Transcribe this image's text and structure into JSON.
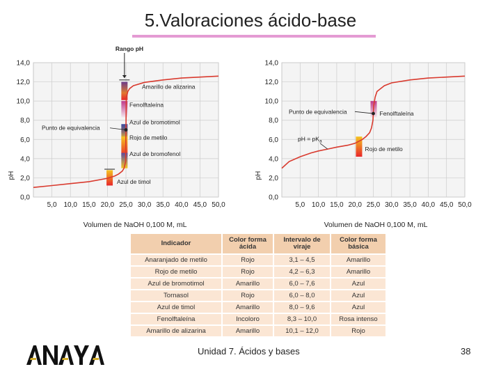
{
  "slide": {
    "title": "5.Valoraciones ácido-base",
    "footer": "Unidad 7. Ácidos y bases",
    "page_number": "38",
    "logo_text": "ANAYA"
  },
  "colors": {
    "curve": "#d93a2e",
    "title_underline": "#e49bd3",
    "table_header": "#f2cfae",
    "table_cell": "#fbe6d4",
    "gradient_top": "#7a3a8a",
    "gradient_bottom": "#e8262a",
    "mid_yellow": "#f5c421"
  },
  "chart_data": [
    {
      "type": "line",
      "title": "",
      "xlabel": "Volumen de NaOH 0,100 M, mL",
      "ylabel": "pH",
      "xlim": [
        0,
        50
      ],
      "ylim": [
        0,
        14
      ],
      "xticks": [
        "5,0",
        "10,0",
        "15,0",
        "20,0",
        "25,0",
        "30,0",
        "35,0",
        "40,0",
        "45,0",
        "50,0"
      ],
      "yticks": [
        "0,0",
        "2,0",
        "4,0",
        "6,0",
        "8,0",
        "10,0",
        "12,0",
        "14,0"
      ],
      "grid": true,
      "series": [
        {
          "x": [
            0,
            5,
            10,
            15,
            20,
            22,
            23,
            24,
            24.5,
            24.9,
            25,
            25.1,
            25.5,
            26,
            27,
            30,
            35,
            40,
            45,
            50
          ],
          "y": [
            1,
            1.2,
            1.4,
            1.6,
            1.95,
            2.2,
            2.4,
            2.7,
            3,
            3.7,
            7,
            10.3,
            11,
            11.3,
            11.6,
            11.95,
            12.2,
            12.4,
            12.5,
            12.6
          ]
        }
      ],
      "range_label": "Rango pH",
      "equivalence_label": "Punto de equivalencia",
      "indicators": [
        "Amarillo de alizarina",
        "Fenolftaleína",
        "Azul de bromotimol",
        "Rojo de metilo",
        "Azul de bromofenol",
        "Azul de timol"
      ]
    },
    {
      "type": "line",
      "title": "",
      "xlabel": "Volumen de NaOH 0,100 M, mL",
      "ylabel": "pH",
      "xlim": [
        0,
        50
      ],
      "ylim": [
        0,
        14
      ],
      "xticks": [
        "5,0",
        "10,0",
        "15,0",
        "20,0",
        "25,0",
        "30,0",
        "35,0",
        "40,0",
        "45,0",
        "50,0"
      ],
      "yticks": [
        "0,0",
        "2,0",
        "4,0",
        "6,0",
        "8,0",
        "10,0",
        "12,0",
        "14,0"
      ],
      "grid": true,
      "series": [
        {
          "x": [
            0,
            2,
            5,
            8,
            10,
            12.5,
            15,
            18,
            20,
            22,
            23,
            24,
            24.5,
            24.9,
            25,
            25.1,
            25.5,
            26,
            28,
            30,
            35,
            40,
            45,
            50
          ],
          "y": [
            3,
            3.7,
            4.2,
            4.6,
            4.8,
            5,
            5.2,
            5.4,
            5.6,
            6,
            6.3,
            6.7,
            7.2,
            8,
            8.7,
            9.5,
            10.4,
            11,
            11.6,
            11.9,
            12.2,
            12.4,
            12.5,
            12.6
          ]
        }
      ],
      "equivalence_label": "Punto de equivalencia",
      "pka_label_main": "pH = pK",
      "pka_label_sub": "a",
      "indicators": [
        "Fenolftaleína",
        "Rojo de metilo"
      ]
    }
  ],
  "table": {
    "headers": [
      "Indicador",
      "Color forma ácida",
      "Intervalo de viraje",
      "Color forma básica"
    ],
    "rows": [
      [
        "Anaranjado de metilo",
        "Rojo",
        "3,1 – 4,5",
        "Amarillo"
      ],
      [
        "Rojo de metilo",
        "Rojo",
        "4,2 – 6,3",
        "Amarillo"
      ],
      [
        "Azul de bromotimol",
        "Amarillo",
        "6,0 – 7,6",
        "Azul"
      ],
      [
        "Tornasol",
        "Rojo",
        "6,0 – 8,0",
        "Azul"
      ],
      [
        "Azul de timol",
        "Amarillo",
        "8,0 – 9,6",
        "Azul"
      ],
      [
        "Fenolftaleína",
        "Incoloro",
        "8,3 – 10,0",
        "Rosa intenso"
      ],
      [
        "Amarillo de alizarina",
        "Amarillo",
        "10,1 – 12,0",
        "Rojo"
      ]
    ]
  }
}
